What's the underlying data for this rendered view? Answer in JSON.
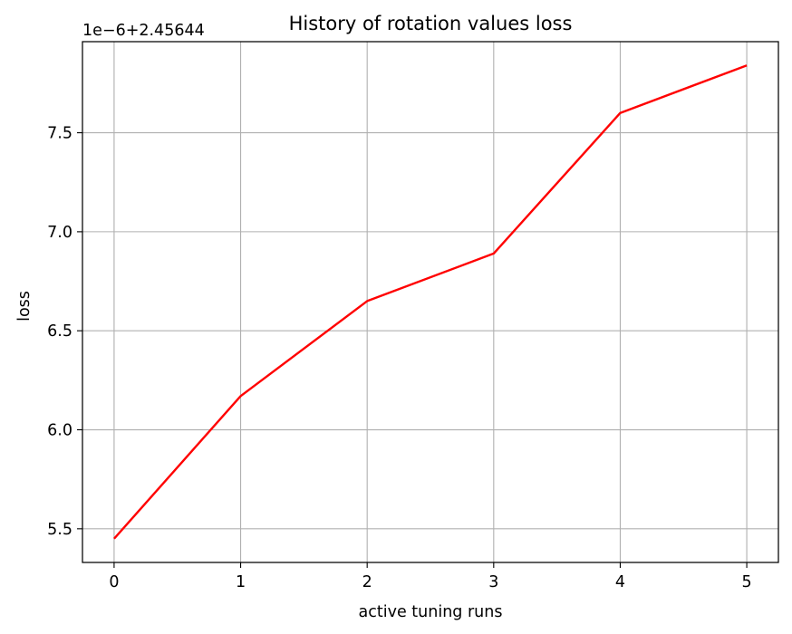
{
  "chart_data": {
    "type": "line",
    "title": "History of rotation values loss",
    "xlabel": "active tuning runs",
    "ylabel": "loss",
    "y_offset_label": "1e−6+2.45644",
    "x": [
      0,
      1,
      2,
      3,
      4,
      5
    ],
    "series": [
      {
        "values": [
          5.45,
          6.17,
          6.65,
          6.89,
          7.6,
          7.84
        ],
        "color": "#ff0000"
      }
    ],
    "xticks": [
      0,
      1,
      2,
      3,
      4,
      5
    ],
    "xtick_labels": [
      "0",
      "1",
      "2",
      "3",
      "4",
      "5"
    ],
    "yticks": [
      5.5,
      6.0,
      6.5,
      7.0,
      7.5
    ],
    "ytick_labels": [
      "5.5",
      "6.0",
      "6.5",
      "7.0",
      "7.5"
    ],
    "xlim": [
      -0.25,
      5.25
    ],
    "ylim": [
      5.33,
      7.96
    ],
    "grid": true,
    "legend": "none"
  }
}
